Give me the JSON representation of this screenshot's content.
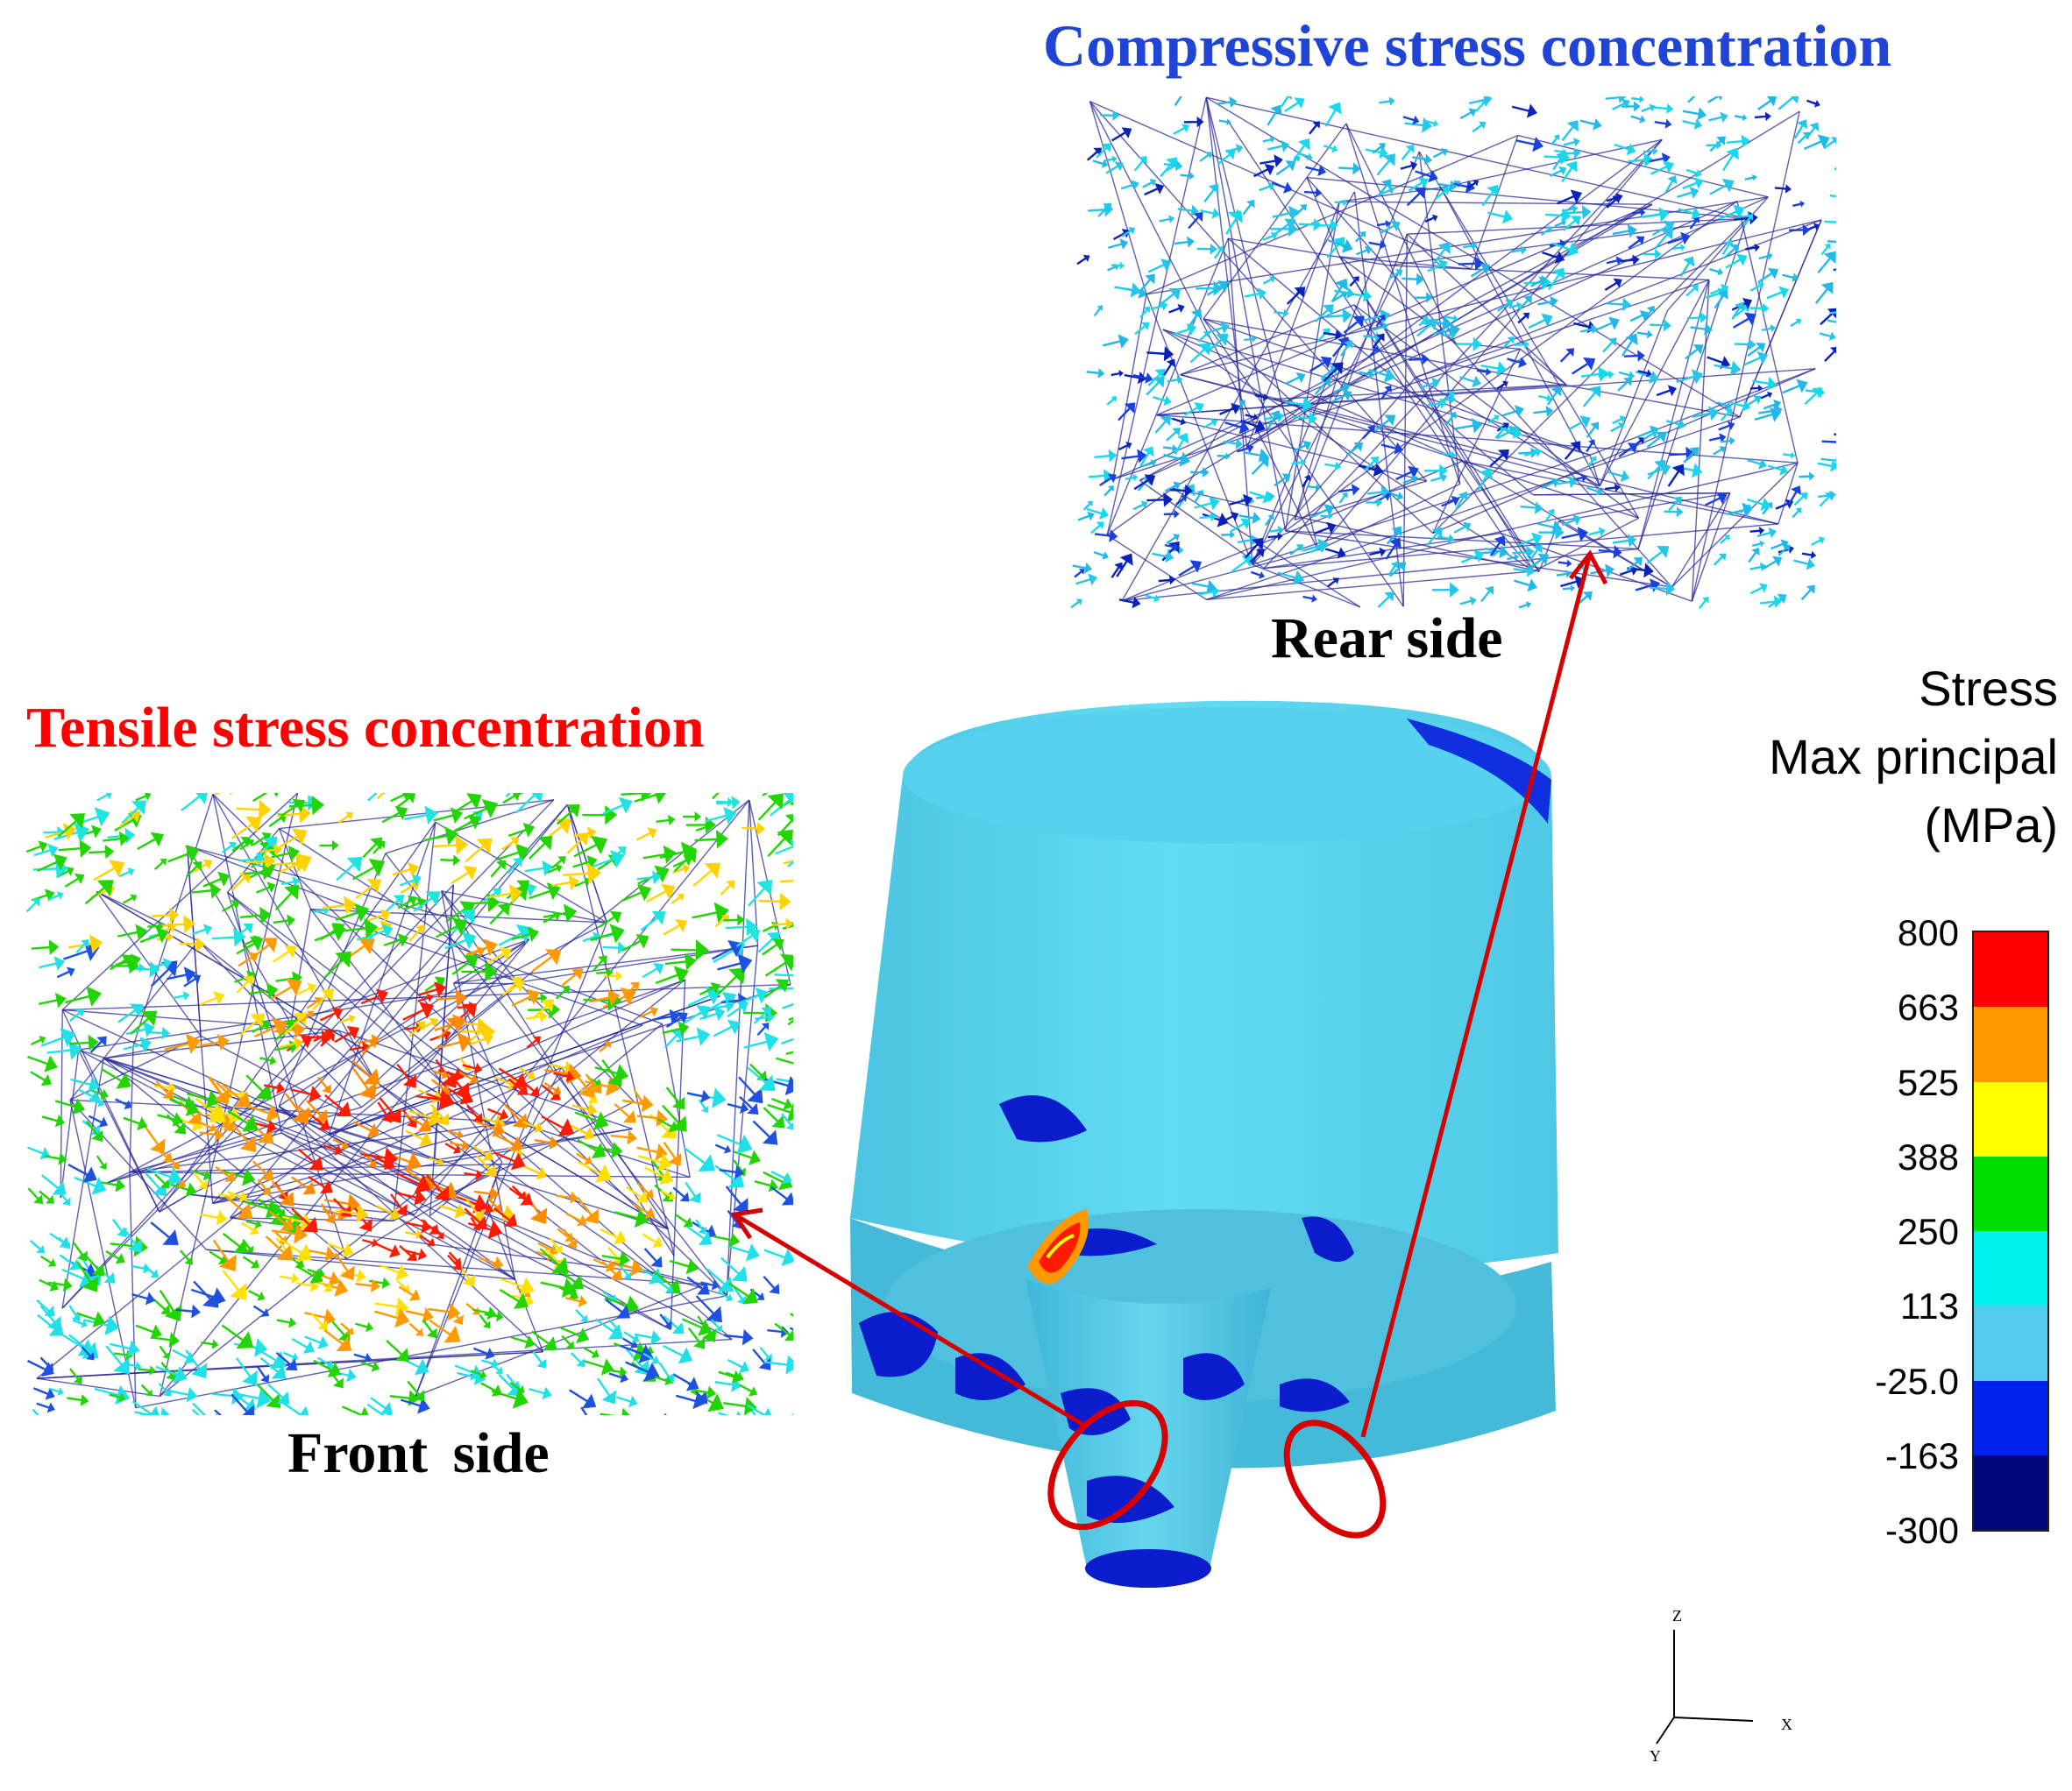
{
  "titles": {
    "compressive": "Compressive stress concentration",
    "tensile": "Tensile stress concentration"
  },
  "captions": {
    "rear": "Rear side",
    "front": "Front  side"
  },
  "legend": {
    "title_lines": [
      "Stress",
      "Max principal",
      "(MPa)"
    ],
    "ticks": [
      "800",
      "663",
      "525",
      "388",
      "250",
      "113",
      "-25.0",
      "-163",
      "-300"
    ],
    "colors": [
      "#ff0000",
      "#ff9900",
      "#ffff00",
      "#00dd00",
      "#00f0ee",
      "#55ccee",
      "#0022ee",
      "#00057a"
    ]
  },
  "axes": {
    "z": "Z",
    "x": "X",
    "y": "Y"
  },
  "colors": {
    "compressive_title": "#1f44d6",
    "tensile_title": "#ff0000",
    "callout": "#d60000",
    "model_body": "#5fd6ef",
    "mesh_line": "#2a2a9a"
  }
}
